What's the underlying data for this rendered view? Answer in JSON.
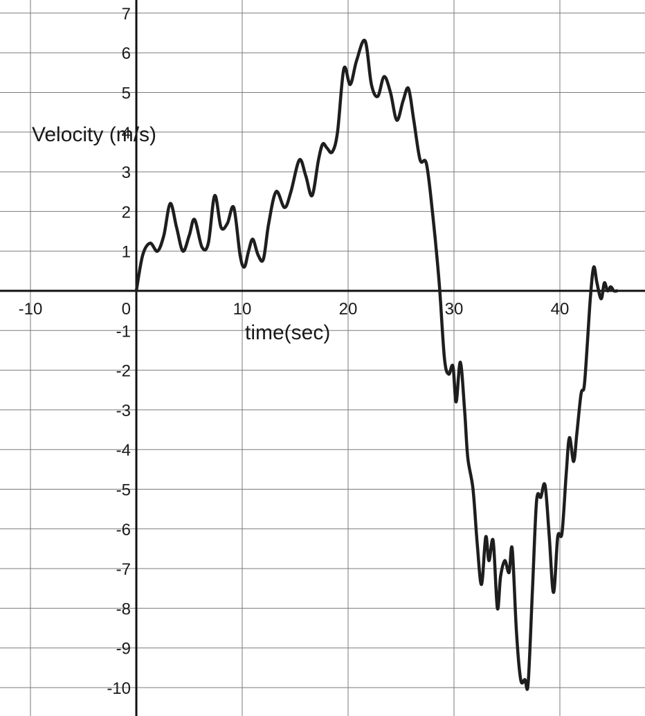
{
  "chart_data": {
    "type": "line",
    "title": "",
    "xlabel": "time(sec)",
    "ylabel": "Velocity (m/s)",
    "xlim": [
      -13,
      48
    ],
    "ylim": [
      -10.7,
      7.3
    ],
    "xticks": [
      -10,
      0,
      10,
      20,
      30,
      40
    ],
    "yticks": [
      -10,
      -9,
      -8,
      -7,
      -6,
      -5,
      -4,
      -3,
      -2,
      -1,
      1,
      2,
      3,
      4,
      5,
      6,
      7
    ],
    "grid": true,
    "series": [
      {
        "x": [
          0,
          0.6,
          1.3,
          2.0,
          2.6,
          3.2,
          3.8,
          4.4,
          5.0,
          5.5,
          6.2,
          6.8,
          7.4,
          8.0,
          8.6,
          9.2,
          9.8,
          10.2,
          10.6,
          11.0,
          11.5,
          12.0,
          12.5,
          13.2,
          14.0,
          14.6,
          15.4,
          16.0,
          16.6,
          17.2,
          17.6,
          18.0,
          18.5,
          19.0,
          19.6,
          20.2,
          20.8,
          21.6,
          22.2,
          22.8,
          23.4,
          24.0,
          24.6,
          25.2,
          25.7,
          26.2,
          26.8,
          27.4,
          28.0,
          28.6,
          29.1,
          29.5,
          29.9,
          30.2,
          30.6,
          31.0,
          31.3,
          31.8,
          32.2,
          32.6,
          33.0,
          33.3,
          33.7,
          34.1,
          34.4,
          34.8,
          35.2,
          35.5,
          35.9,
          36.3,
          36.7,
          37.0,
          37.4,
          37.8,
          38.2,
          38.6,
          39.0,
          39.4,
          39.8,
          40.2,
          40.6,
          40.9,
          41.3,
          41.6,
          42.0,
          42.3,
          42.6,
          42.9,
          43.2,
          43.5,
          43.9,
          44.2,
          44.5,
          44.8,
          45.1,
          45.4
        ],
        "y": [
          0,
          0.9,
          1.2,
          1.0,
          1.4,
          2.2,
          1.6,
          1.0,
          1.4,
          1.8,
          1.1,
          1.2,
          2.4,
          1.6,
          1.7,
          2.1,
          0.9,
          0.6,
          1.0,
          1.3,
          0.9,
          0.8,
          1.7,
          2.5,
          2.1,
          2.5,
          3.3,
          2.9,
          2.4,
          3.3,
          3.7,
          3.6,
          3.5,
          4.0,
          5.6,
          5.2,
          5.8,
          6.3,
          5.2,
          4.9,
          5.4,
          5.0,
          4.3,
          4.8,
          5.1,
          4.3,
          3.3,
          3.2,
          1.9,
          0.2,
          -1.7,
          -2.1,
          -1.9,
          -2.8,
          -1.8,
          -3.0,
          -4.2,
          -5.0,
          -6.4,
          -7.4,
          -6.2,
          -6.8,
          -6.3,
          -8.0,
          -7.2,
          -6.8,
          -7.1,
          -6.5,
          -8.6,
          -9.8,
          -9.8,
          -9.9,
          -7.6,
          -5.3,
          -5.2,
          -4.9,
          -6.2,
          -7.6,
          -6.2,
          -6.1,
          -4.6,
          -3.7,
          -4.3,
          -3.6,
          -2.6,
          -2.4,
          -1.3,
          -0.1,
          0.6,
          0.2,
          -0.2,
          0.2,
          0.0,
          0.1,
          0.0,
          0.0
        ]
      }
    ]
  }
}
